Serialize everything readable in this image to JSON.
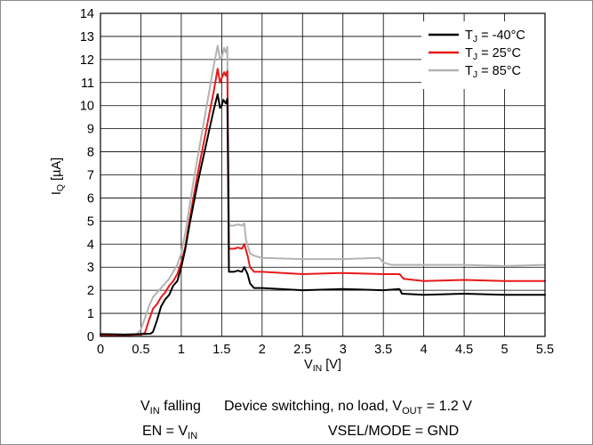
{
  "chart_data": {
    "type": "line",
    "xlabel": {
      "main": "V",
      "sub": "IN",
      "unit": " [V]"
    },
    "ylabel": {
      "main": "I",
      "sub": "Q",
      "unit": " [µA]"
    },
    "xlim": [
      0,
      5.5
    ],
    "ylim": [
      0,
      14
    ],
    "xticks": [
      "0",
      "0.5",
      "1",
      "1.5",
      "2",
      "2.5",
      "3",
      "3.5",
      "4",
      "4.5",
      "5",
      "5.5"
    ],
    "yticks": [
      "0",
      "1",
      "2",
      "3",
      "4",
      "5",
      "6",
      "7",
      "8",
      "9",
      "10",
      "11",
      "12",
      "13",
      "14"
    ],
    "grid": true,
    "legend_position": "top-right",
    "series": [
      {
        "name": {
          "main": "T",
          "sub": "J",
          "rest": " = -40°C"
        },
        "color": "#000000",
        "points": [
          [
            0,
            0.1
          ],
          [
            0.3,
            0.08
          ],
          [
            0.5,
            0.1
          ],
          [
            0.62,
            0.12
          ],
          [
            0.65,
            0.2
          ],
          [
            0.7,
            0.7
          ],
          [
            0.75,
            1.3
          ],
          [
            0.8,
            1.6
          ],
          [
            0.85,
            1.8
          ],
          [
            0.9,
            2.2
          ],
          [
            0.95,
            2.4
          ],
          [
            1.0,
            3.0
          ],
          [
            1.05,
            3.8
          ],
          [
            1.1,
            4.8
          ],
          [
            1.15,
            5.7
          ],
          [
            1.2,
            6.6
          ],
          [
            1.25,
            7.4
          ],
          [
            1.3,
            8.2
          ],
          [
            1.35,
            9.0
          ],
          [
            1.4,
            9.8
          ],
          [
            1.45,
            10.5
          ],
          [
            1.48,
            9.9
          ],
          [
            1.5,
            10.0
          ],
          [
            1.52,
            10.25
          ],
          [
            1.55,
            10.1
          ],
          [
            1.57,
            10.3
          ],
          [
            1.58,
            7.0
          ],
          [
            1.59,
            2.8
          ],
          [
            1.65,
            2.8
          ],
          [
            1.7,
            2.85
          ],
          [
            1.75,
            2.8
          ],
          [
            1.78,
            3.0
          ],
          [
            1.82,
            2.7
          ],
          [
            1.85,
            2.3
          ],
          [
            1.9,
            2.1
          ],
          [
            2.0,
            2.1
          ],
          [
            2.5,
            2.0
          ],
          [
            3.0,
            2.05
          ],
          [
            3.5,
            2.0
          ],
          [
            3.7,
            2.05
          ],
          [
            3.73,
            1.85
          ],
          [
            4.0,
            1.8
          ],
          [
            4.5,
            1.85
          ],
          [
            5.0,
            1.8
          ],
          [
            5.5,
            1.8
          ]
        ]
      },
      {
        "name": {
          "main": "T",
          "sub": "J",
          "rest": " = 25°C"
        },
        "color": "#e8191a",
        "points": [
          [
            0,
            0.05
          ],
          [
            0.3,
            0.05
          ],
          [
            0.5,
            0.08
          ],
          [
            0.55,
            0.15
          ],
          [
            0.6,
            0.7
          ],
          [
            0.65,
            1.2
          ],
          [
            0.7,
            1.4
          ],
          [
            0.75,
            1.7
          ],
          [
            0.8,
            1.9
          ],
          [
            0.85,
            2.2
          ],
          [
            0.9,
            2.4
          ],
          [
            0.95,
            2.7
          ],
          [
            1.0,
            3.2
          ],
          [
            1.05,
            3.9
          ],
          [
            1.1,
            5.0
          ],
          [
            1.15,
            6.0
          ],
          [
            1.2,
            7.0
          ],
          [
            1.25,
            7.9
          ],
          [
            1.3,
            8.8
          ],
          [
            1.35,
            9.7
          ],
          [
            1.4,
            10.6
          ],
          [
            1.45,
            11.6
          ],
          [
            1.48,
            11.0
          ],
          [
            1.5,
            11.2
          ],
          [
            1.53,
            11.45
          ],
          [
            1.55,
            11.3
          ],
          [
            1.57,
            11.5
          ],
          [
            1.58,
            7.5
          ],
          [
            1.59,
            3.8
          ],
          [
            1.65,
            3.8
          ],
          [
            1.7,
            3.85
          ],
          [
            1.75,
            3.8
          ],
          [
            1.78,
            4.0
          ],
          [
            1.82,
            3.5
          ],
          [
            1.85,
            3.0
          ],
          [
            1.9,
            2.8
          ],
          [
            2.0,
            2.8
          ],
          [
            2.5,
            2.7
          ],
          [
            3.0,
            2.75
          ],
          [
            3.5,
            2.7
          ],
          [
            3.7,
            2.7
          ],
          [
            3.75,
            2.5
          ],
          [
            4.0,
            2.4
          ],
          [
            4.5,
            2.45
          ],
          [
            5.0,
            2.4
          ],
          [
            5.5,
            2.4
          ]
        ]
      },
      {
        "name": {
          "main": "T",
          "sub": "J",
          "rest": " = 85°C"
        },
        "color": "#b3b3b3",
        "points": [
          [
            0,
            0.05
          ],
          [
            0.3,
            0.05
          ],
          [
            0.45,
            0.1
          ],
          [
            0.5,
            0.3
          ],
          [
            0.55,
            0.8
          ],
          [
            0.6,
            1.3
          ],
          [
            0.65,
            1.7
          ],
          [
            0.7,
            1.9
          ],
          [
            0.75,
            2.1
          ],
          [
            0.8,
            2.3
          ],
          [
            0.85,
            2.5
          ],
          [
            0.9,
            2.8
          ],
          [
            0.95,
            3.1
          ],
          [
            1.0,
            3.6
          ],
          [
            1.05,
            4.5
          ],
          [
            1.1,
            5.6
          ],
          [
            1.15,
            6.7
          ],
          [
            1.2,
            7.7
          ],
          [
            1.25,
            8.7
          ],
          [
            1.3,
            9.7
          ],
          [
            1.35,
            10.7
          ],
          [
            1.4,
            11.7
          ],
          [
            1.45,
            12.6
          ],
          [
            1.48,
            12.0
          ],
          [
            1.5,
            12.1
          ],
          [
            1.53,
            12.5
          ],
          [
            1.55,
            12.3
          ],
          [
            1.57,
            12.55
          ],
          [
            1.58,
            8.5
          ],
          [
            1.59,
            4.8
          ],
          [
            1.65,
            4.8
          ],
          [
            1.7,
            4.85
          ],
          [
            1.75,
            4.8
          ],
          [
            1.78,
            4.9
          ],
          [
            1.8,
            4.2
          ],
          [
            1.85,
            3.6
          ],
          [
            1.9,
            3.5
          ],
          [
            2.0,
            3.4
          ],
          [
            2.5,
            3.35
          ],
          [
            3.0,
            3.35
          ],
          [
            3.45,
            3.4
          ],
          [
            3.5,
            3.2
          ],
          [
            3.6,
            3.1
          ],
          [
            4.0,
            3.1
          ],
          [
            4.5,
            3.1
          ],
          [
            5.0,
            3.05
          ],
          [
            5.5,
            3.1
          ]
        ]
      }
    ]
  },
  "notes": {
    "left_line1": {
      "main": "V",
      "sub": "IN",
      "rest": " falling"
    },
    "left_line2": {
      "prefix": "EN = V",
      "sub": "IN"
    },
    "right_line1": {
      "prefix": "Device switching, no load, V",
      "sub": "OUT",
      "rest": " = 1.2 V"
    },
    "right_line2": "VSEL/MODE = GND"
  }
}
